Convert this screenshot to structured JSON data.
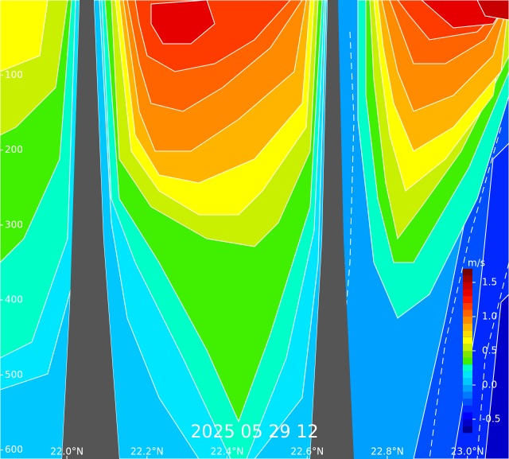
{
  "chart_data": {
    "type": "contour",
    "title": "2025 05 29 12",
    "xlim": [
      21.833,
      23.104
    ],
    "xticks": [
      {
        "value": 22.0,
        "label": "22.0°N"
      },
      {
        "value": 22.2,
        "label": "22.2°N"
      },
      {
        "value": 22.4,
        "label": "22.4°N"
      },
      {
        "value": 22.6,
        "label": "22.6°N"
      },
      {
        "value": 22.8,
        "label": "22.8°N"
      },
      {
        "value": 23.0,
        "label": "23.0°N"
      }
    ],
    "ylim": [
      0,
      612
    ],
    "yticks": [
      100,
      200,
      300,
      400,
      500,
      600
    ],
    "colorbar": {
      "label": "m/s",
      "levels": [
        -0.7,
        -0.6,
        -0.5,
        -0.4,
        -0.3,
        -0.2,
        -0.1,
        0.0,
        0.1,
        0.2,
        0.3,
        0.4,
        0.5,
        0.6,
        0.7,
        0.8,
        0.9,
        1.0,
        1.1,
        1.2,
        1.3,
        1.4,
        1.5,
        1.6,
        1.7
      ],
      "colors": [
        "#000096",
        "#0000c8",
        "#0000ff",
        "#0028ff",
        "#0050ff",
        "#0078ff",
        "#00a0ff",
        "#00c8ff",
        "#00e6ff",
        "#00ffc8",
        "#40f000",
        "#80e600",
        "#c8f000",
        "#ffff00",
        "#ffdc00",
        "#ffb400",
        "#ff8c00",
        "#ff6400",
        "#ff3c00",
        "#ff1400",
        "#e60000",
        "#c80000",
        "#a00000",
        "#780000"
      ],
      "ticks": [
        1.5,
        {
          "value": 1.0,
          "label": "1.0"
        },
        0.5,
        {
          "value": 0.0,
          "label": "0.0"
        },
        -0.5
      ]
    }
  }
}
